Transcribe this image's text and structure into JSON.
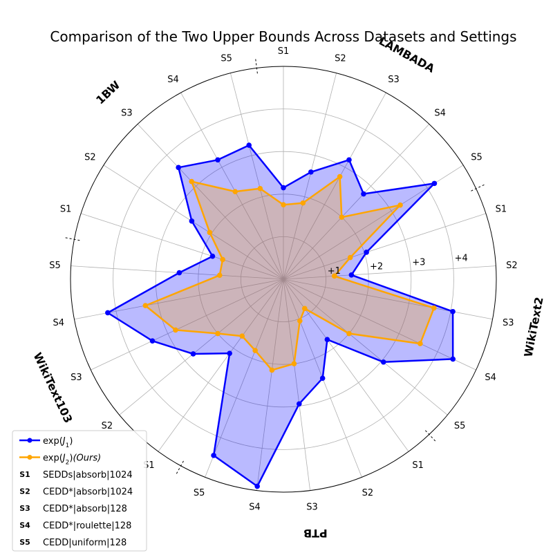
{
  "chart_data": {
    "type": "radar",
    "title": "Comparison of the Two Upper Bounds Across Datasets and Settings",
    "spokes": [
      {
        "group": "LAMBADA",
        "setting": "S1"
      },
      {
        "group": "LAMBADA",
        "setting": "S2"
      },
      {
        "group": "LAMBADA",
        "setting": "S3"
      },
      {
        "group": "LAMBADA",
        "setting": "S4"
      },
      {
        "group": "LAMBADA",
        "setting": "S5"
      },
      {
        "group": "WikiText2",
        "setting": "S1"
      },
      {
        "group": "WikiText2",
        "setting": "S2"
      },
      {
        "group": "WikiText2",
        "setting": "S3"
      },
      {
        "group": "WikiText2",
        "setting": "S4"
      },
      {
        "group": "WikiText2",
        "setting": "S5"
      },
      {
        "group": "PTB",
        "setting": "S1"
      },
      {
        "group": "PTB",
        "setting": "S2"
      },
      {
        "group": "PTB",
        "setting": "S3"
      },
      {
        "group": "PTB",
        "setting": "S4"
      },
      {
        "group": "PTB",
        "setting": "S5"
      },
      {
        "group": "WikiText103",
        "setting": "S1"
      },
      {
        "group": "WikiText103",
        "setting": "S2"
      },
      {
        "group": "WikiText103",
        "setting": "S3"
      },
      {
        "group": "WikiText103",
        "setting": "S4"
      },
      {
        "group": "WikiText103",
        "setting": "S5"
      },
      {
        "group": "1BW",
        "setting": "S1"
      },
      {
        "group": "1BW",
        "setting": "S2"
      },
      {
        "group": "1BW",
        "setting": "S3"
      },
      {
        "group": "1BW",
        "setting": "S4"
      },
      {
        "group": "1BW",
        "setting": "S5"
      }
    ],
    "groups": [
      {
        "name": "LAMBADA",
        "center_spoke": 2
      },
      {
        "name": "WikiText2",
        "center_spoke": 7
      },
      {
        "name": "PTB",
        "center_spoke": 12
      },
      {
        "name": "WikiText103",
        "center_spoke": 17
      },
      {
        "name": "1BW",
        "center_spoke": 22
      }
    ],
    "radial_ticks": [
      {
        "value": 1,
        "label": "+1"
      },
      {
        "value": 2,
        "label": "+2"
      },
      {
        "value": 3,
        "label": "+3"
      },
      {
        "value": 4,
        "label": "+4"
      }
    ],
    "rlim": [
      0,
      5
    ],
    "grid": true,
    "series": [
      {
        "name": "exp(J1)",
        "color": "#0000ff",
        "fill": "#0000ff",
        "fill_opacity": 0.27,
        "values": [
          2.15,
          2.6,
          3.2,
          2.75,
          4.2,
          2.05,
          1.6,
          4.05,
          4.4,
          3.05,
          1.75,
          2.5,
          2.95,
          4.9,
          4.45,
          2.15,
          2.75,
          3.4,
          4.2,
          2.45,
          1.75,
          2.55,
          3.6,
          3.2,
          3.25
        ]
      },
      {
        "name": "exp(J2)(Ours)",
        "color": "#ffa500",
        "fill": "#ffa500",
        "fill_opacity": 0.27,
        "values": [
          1.75,
          1.85,
          2.75,
          2.0,
          3.25,
          1.65,
          1.2,
          3.6,
          3.55,
          2.0,
          0.85,
          1.05,
          2.0,
          2.15,
          1.8,
          1.65,
          2.0,
          2.8,
          3.3,
          1.5,
          1.5,
          2.05,
          3.15,
          2.35,
          2.2
        ]
      }
    ]
  },
  "legend": {
    "position": "lower-left",
    "items": [
      {
        "kind": "line",
        "color": "#0000ff",
        "label": "exp(J1)",
        "base": "exp(",
        "var": "J",
        "sub": "1",
        "tail": ")",
        "italic_tail": ""
      },
      {
        "kind": "line",
        "color": "#ffa500",
        "label": "exp(J2)(Ours)",
        "base": "exp(",
        "var": "J",
        "sub": "2",
        "tail": ")",
        "italic_tail": "(Ours)"
      },
      {
        "kind": "marker",
        "marker": "S1",
        "label": "SEDDs|absorb|1024"
      },
      {
        "kind": "marker",
        "marker": "S2",
        "label": "CEDD*|absorb|1024"
      },
      {
        "kind": "marker",
        "marker": "S3",
        "label": "CEDD*|absorb|128"
      },
      {
        "kind": "marker",
        "marker": "S4",
        "label": "CEDD*|roulette|128"
      },
      {
        "kind": "marker",
        "marker": "S5",
        "label": "CEDD|uniform|128"
      }
    ]
  }
}
